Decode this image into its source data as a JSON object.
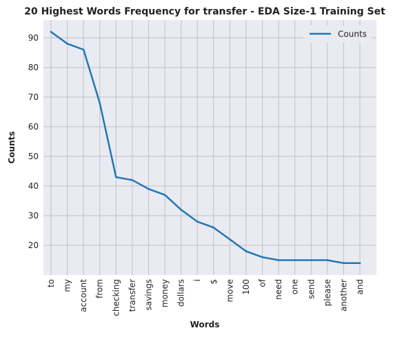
{
  "chart_data": {
    "type": "line",
    "title": "20 Highest Words Frequency for transfer - EDA Size-1 Training Set",
    "xlabel": "Words",
    "ylabel": "Counts",
    "categories": [
      "to",
      "my",
      "account",
      "from",
      "checking",
      "transfer",
      "savings",
      "money",
      "dollars",
      "i",
      "$",
      "move",
      "100",
      "of",
      "need",
      "one",
      "send",
      "please",
      "another",
      "and"
    ],
    "series": [
      {
        "name": "Counts",
        "color": "#1f77b4",
        "values": [
          92,
          88,
          86,
          68,
          43,
          42,
          39,
          37,
          32,
          28,
          26,
          22,
          18,
          16,
          15,
          15,
          15,
          15,
          14,
          14
        ]
      }
    ],
    "ylim": [
      10,
      96
    ],
    "yticks": [
      20,
      30,
      40,
      50,
      60,
      70,
      80,
      90
    ],
    "grid": true,
    "legend": "top-right",
    "background": "#eaeaf2",
    "grid_color": "#c0c0c8"
  }
}
